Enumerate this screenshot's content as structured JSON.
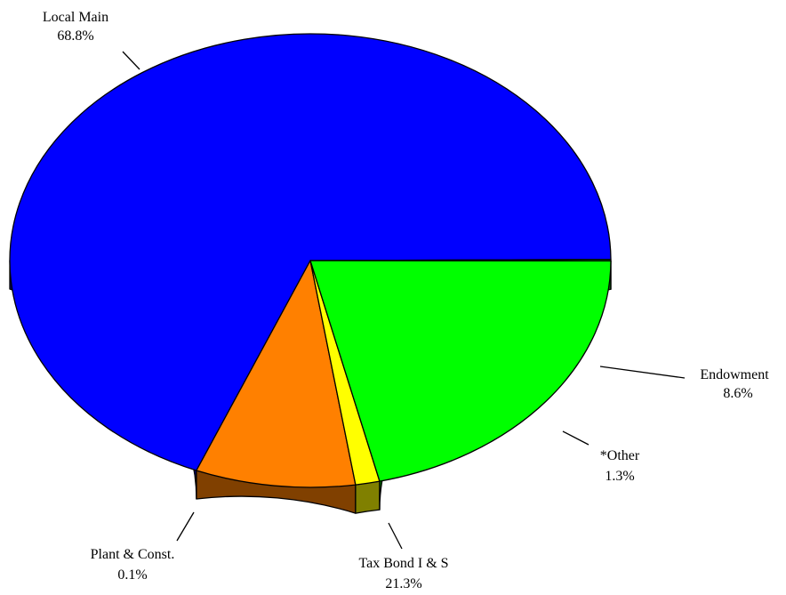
{
  "chart_data": {
    "type": "pie",
    "title": "",
    "style": "3d-tilted",
    "categories": [
      "Local Main",
      "Endowment",
      "*Other",
      "Tax Bond I & S",
      "Plant & Const."
    ],
    "values": [
      68.8,
      8.6,
      1.3,
      21.3,
      0.1
    ],
    "value_labels": [
      "68.8%",
      "8.6%",
      "1.3%",
      "21.3%",
      "0.1%"
    ],
    "colors": {
      "top": [
        "#0000ff",
        "#ff8000",
        "#ffff00",
        "#00ff00",
        "#00ff00"
      ],
      "side": [
        "#000080",
        "#804000",
        "#808000",
        "#008000",
        "#008000"
      ]
    },
    "legend": "none"
  }
}
